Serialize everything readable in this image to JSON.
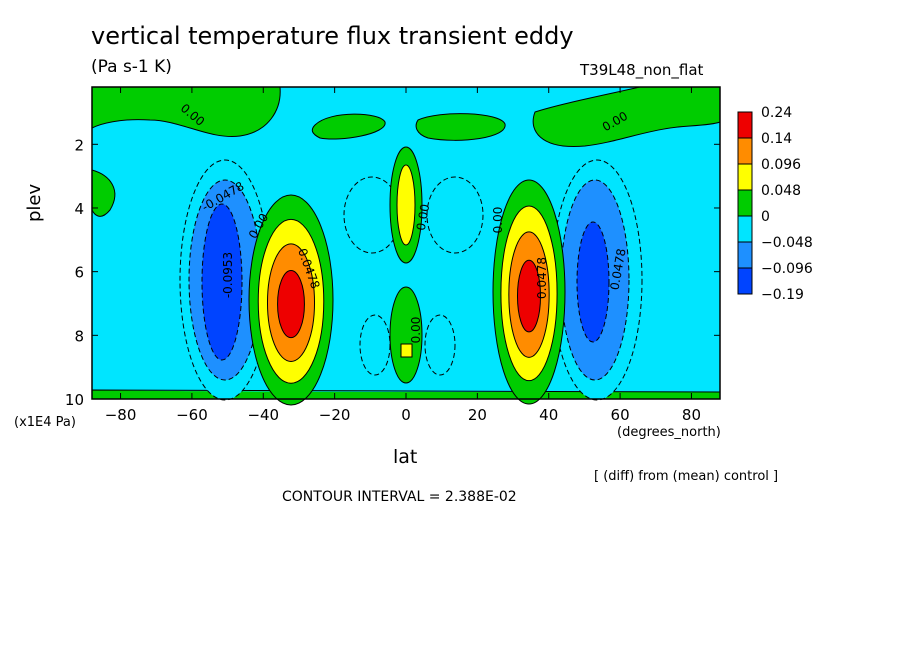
{
  "chart_data": {
    "type": "heatmap",
    "title": "vertical temperature flux transient eddy",
    "subtitle": "(Pa s-1 K)",
    "run_label": "T39L48_non_flat",
    "xlabel": "lat",
    "x_units": "(degrees_north)",
    "ylabel": "plev",
    "y_units": "(x1E4 Pa)",
    "xlim": [
      -88,
      88
    ],
    "ylim": [
      10,
      0.2
    ],
    "x_ticks": [
      "-80",
      "-60",
      "-40",
      "-20",
      "0",
      "20",
      "40",
      "60",
      "80"
    ],
    "y_ticks": [
      "2",
      "4",
      "6",
      "8",
      "10"
    ],
    "contour_levels": [
      "0.24",
      "0.14",
      "0.096",
      "0.048",
      "0",
      "-0.048",
      "-0.096",
      "-0.19"
    ],
    "contour_labels": [
      "0.00",
      "0.00",
      "-0.0478",
      "0.00",
      "0.00",
      "0.00",
      "-0.0953",
      "0.0478",
      "0.0478",
      "0.00",
      "0.0478"
    ],
    "colors": [
      "#ee0000",
      "#ff8c00",
      "#ffff00",
      "#00cc00",
      "#00e5ff",
      "#1e90ff",
      "#0044ff"
    ],
    "footer_left": "CONTOUR INTERVAL = 2.388E-02",
    "footer_right": "[ (diff) from (mean) control ]"
  }
}
